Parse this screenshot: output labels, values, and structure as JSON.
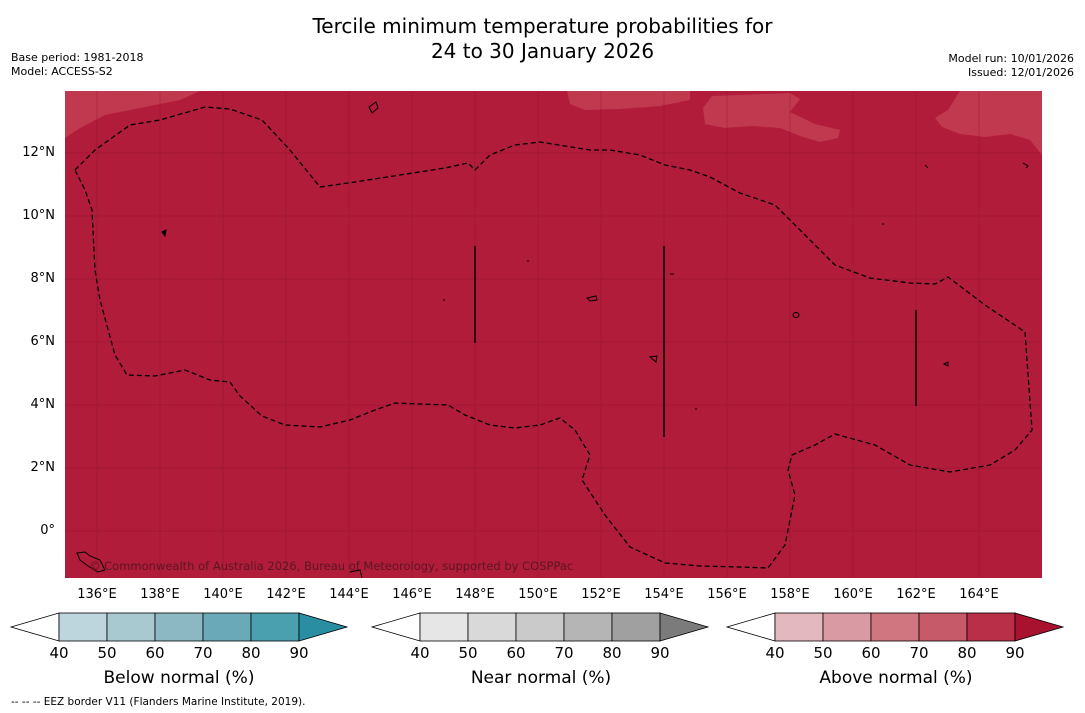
{
  "header": {
    "title_line1": "Tercile minimum temperature probabilities for",
    "title_line2": "24 to 30 January 2026",
    "base_period": "Base period: 1981-2018",
    "model": "Model: ACCESS-S2",
    "model_run": "Model run: 10/01/2026",
    "issued": "Issued: 12/01/2026"
  },
  "map": {
    "fill_color": "#b11c3a",
    "light_patch_color": "#c1394f",
    "lat_labels": [
      "12°N",
      "10°N",
      "8°N",
      "6°N",
      "4°N",
      "2°N",
      "0°"
    ],
    "lon_labels": [
      "136°E",
      "138°E",
      "140°E",
      "142°E",
      "144°E",
      "146°E",
      "148°E",
      "150°E",
      "152°E",
      "154°E",
      "156°E",
      "158°E",
      "160°E",
      "162°E",
      "164°E"
    ],
    "copyright": "© Commonwealth of Australia 2026, Bureau of Meteorology, supported by COSPPac"
  },
  "legend": {
    "bars": [
      {
        "label": "Below normal (%)",
        "ticks": [
          "40",
          "50",
          "60",
          "70",
          "80",
          "90"
        ],
        "colors": [
          "#ffffff",
          "#bdd5dc",
          "#a8c9d0",
          "#8cb8c4",
          "#6aaab8",
          "#4ba0b0",
          "#2a8ea3"
        ]
      },
      {
        "label": "Near normal (%)",
        "ticks": [
          "40",
          "50",
          "60",
          "70",
          "80",
          "90"
        ],
        "colors": [
          "#ffffff",
          "#e6e6e6",
          "#d9d9d9",
          "#cacaca",
          "#b5b5b5",
          "#a0a0a0",
          "#7b7b7b"
        ]
      },
      {
        "label": "Above normal (%)",
        "ticks": [
          "40",
          "50",
          "60",
          "70",
          "80",
          "90"
        ],
        "colors": [
          "#ffffff",
          "#e4b8bf",
          "#d99aa3",
          "#cf7680",
          "#c65a68",
          "#b92f47",
          "#a8122f"
        ]
      }
    ]
  },
  "footnote": "--  --  -- EEZ border V11 (Flanders Marine Institute, 2019)."
}
